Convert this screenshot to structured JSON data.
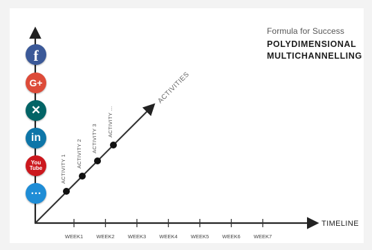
{
  "header": {
    "subtitle": "Formula for Success",
    "title_lines": [
      "POLYDIMENSIONAL",
      "MULTICHANNELLING"
    ]
  },
  "axes": {
    "x_label": "TIMELINE",
    "diagonal_label": "ACTIVITIES",
    "weeks": [
      "WEEK1",
      "WEEK2",
      "WEEK3",
      "WEEK4",
      "WEEK5",
      "WEEK6",
      "WEEK7"
    ]
  },
  "activities": [
    "ACTIVITY 1",
    "ACTIVITY 2",
    "ACTIVITY 3",
    "ACTIVITY ..."
  ],
  "icons": [
    {
      "name": "facebook-icon",
      "glyph": "f",
      "color": "#3b5998"
    },
    {
      "name": "google-plus-icon",
      "glyph": "G+",
      "color": "#dd4b39"
    },
    {
      "name": "xing-icon",
      "glyph": "✕",
      "color": "#026466"
    },
    {
      "name": "linkedin-icon",
      "glyph": "in",
      "color": "#0e76a8"
    },
    {
      "name": "youtube-icon",
      "glyph": "You Tube",
      "color": "#cc181e"
    },
    {
      "name": "more-icon",
      "glyph": "…",
      "color": "#1f8dd6"
    }
  ]
}
